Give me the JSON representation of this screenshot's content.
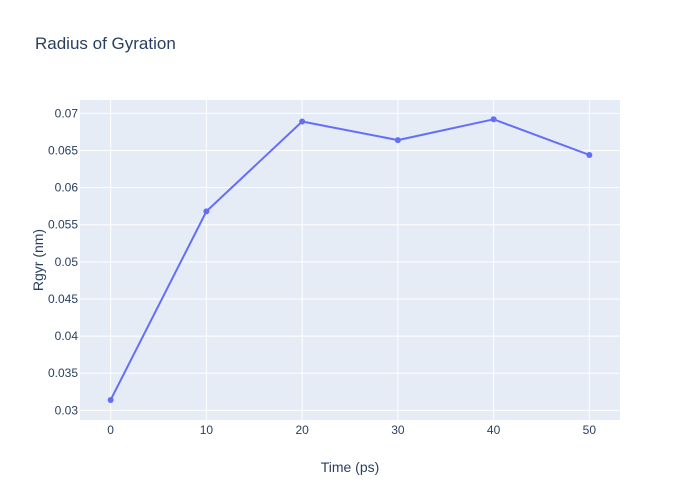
{
  "chart_data": {
    "type": "line",
    "title": "Radius of Gyration",
    "xlabel": "Time (ps)",
    "ylabel": "Rgyr (nm)",
    "x": [
      0,
      10,
      20,
      30,
      40,
      50
    ],
    "series": [
      {
        "values": [
          0.0314,
          0.0568,
          0.0689,
          0.0664,
          0.0692,
          0.0644
        ],
        "color": "#636efa"
      }
    ],
    "xticks": [
      0,
      10,
      20,
      30,
      40,
      50
    ],
    "xtick_labels": [
      "0",
      "10",
      "20",
      "30",
      "40",
      "50"
    ],
    "yticks": [
      0.03,
      0.035,
      0.04,
      0.045,
      0.05,
      0.055,
      0.06,
      0.065,
      0.07
    ],
    "ytick_labels": [
      "0.03",
      "0.035",
      "0.04",
      "0.045",
      "0.05",
      "0.055",
      "0.06",
      "0.065",
      "0.07"
    ],
    "xlim": [
      -3.2,
      53.2
    ],
    "ylim": [
      0.0287,
      0.0718
    ],
    "grid": true,
    "plot_background": "#e5ecf6",
    "grid_color": "#ffffff",
    "text_color": "#2a3f5f"
  }
}
